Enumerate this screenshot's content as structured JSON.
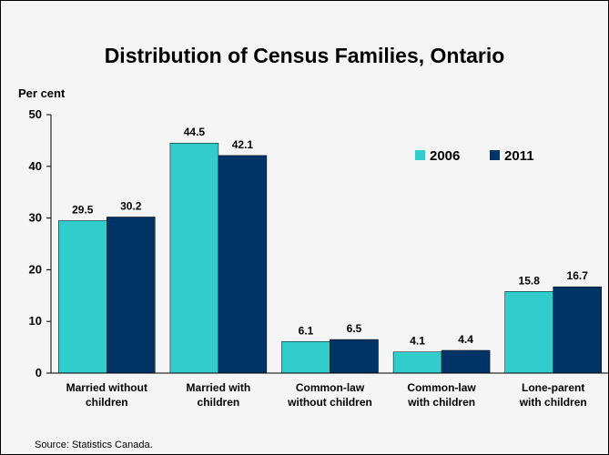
{
  "chart_data": {
    "type": "bar",
    "title": "Distribution of Census Families, Ontario",
    "ylabel": "Per cent",
    "ylim": [
      0,
      50
    ],
    "yticks": [
      0,
      10,
      20,
      30,
      40,
      50
    ],
    "categories": [
      "Married without children",
      "Married with children",
      "Common-law without children",
      "Common-law with children",
      "Lone-parent with children"
    ],
    "category_lines": [
      [
        "Married without",
        "children"
      ],
      [
        "Married with",
        "children"
      ],
      [
        "Common-law",
        "without children"
      ],
      [
        "Common-law",
        "with children"
      ],
      [
        "Lone-parent",
        "with children"
      ]
    ],
    "series": [
      {
        "name": "2006",
        "color": "#33cccc",
        "values": [
          29.5,
          44.5,
          6.1,
          4.1,
          15.8
        ]
      },
      {
        "name": "2011",
        "color": "#003366",
        "values": [
          30.2,
          42.1,
          6.5,
          4.4,
          16.7
        ]
      }
    ],
    "legend_position": "top-right",
    "grid": false
  },
  "source": "Source: Statistics Canada."
}
